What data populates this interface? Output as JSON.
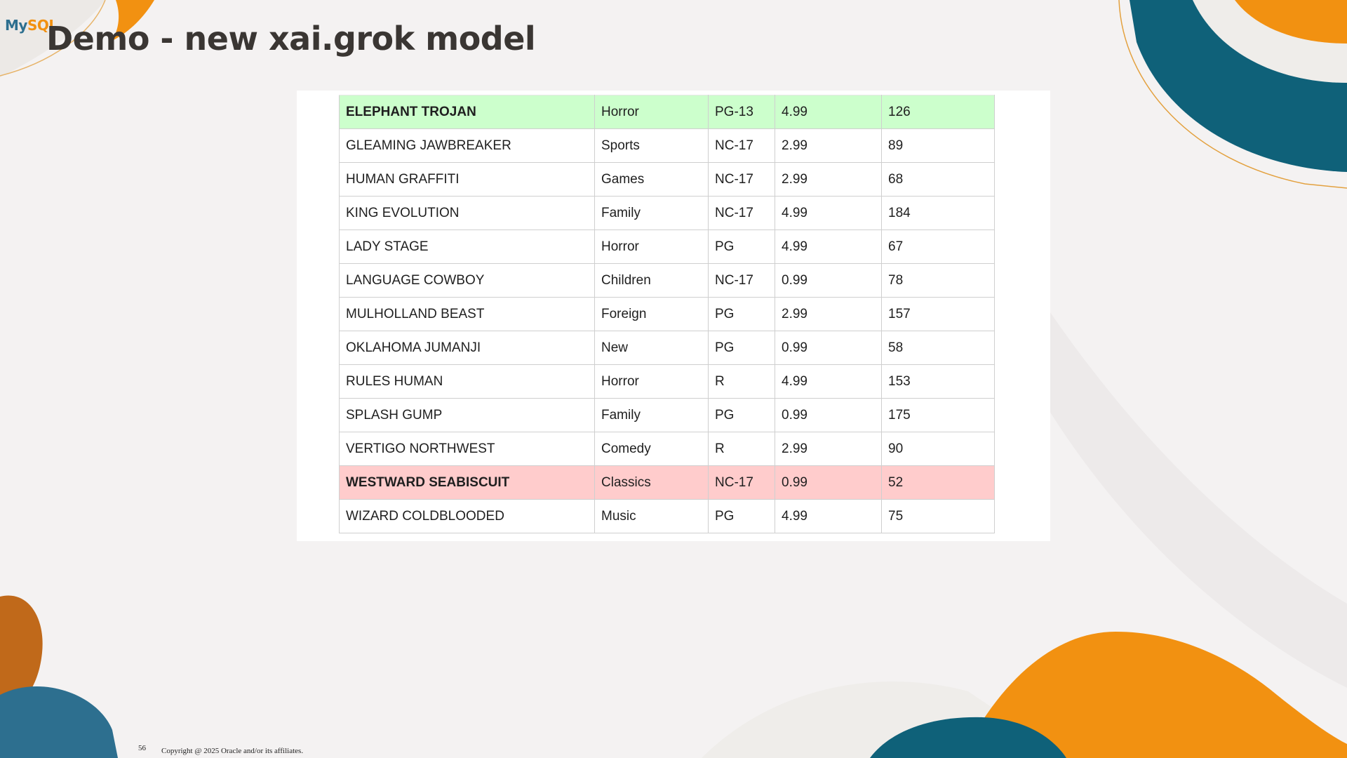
{
  "slide": {
    "title": "Demo - new xai.grok model",
    "logo_my": "My",
    "logo_sql": "SQL",
    "page_number": "56",
    "copyright": "Copyright @ 2025 Oracle and/or its affiliates."
  },
  "colors": {
    "orange": "#f29111",
    "teal": "#0f6179",
    "highlight_green": "#ccffcc",
    "highlight_red": "#ffcccc"
  },
  "table": {
    "rows": [
      {
        "title": "ELEPHANT TROJAN",
        "category": "Horror",
        "rating": "PG-13",
        "rate": "4.99",
        "length": "126",
        "highlight": "green"
      },
      {
        "title": "GLEAMING JAWBREAKER",
        "category": "Sports",
        "rating": "NC-17",
        "rate": "2.99",
        "length": "89",
        "highlight": ""
      },
      {
        "title": "HUMAN GRAFFITI",
        "category": "Games",
        "rating": "NC-17",
        "rate": "2.99",
        "length": "68",
        "highlight": ""
      },
      {
        "title": "KING EVOLUTION",
        "category": "Family",
        "rating": "NC-17",
        "rate": "4.99",
        "length": "184",
        "highlight": ""
      },
      {
        "title": "LADY STAGE",
        "category": "Horror",
        "rating": "PG",
        "rate": "4.99",
        "length": "67",
        "highlight": ""
      },
      {
        "title": "LANGUAGE COWBOY",
        "category": "Children",
        "rating": "NC-17",
        "rate": "0.99",
        "length": "78",
        "highlight": ""
      },
      {
        "title": "MULHOLLAND BEAST",
        "category": "Foreign",
        "rating": "PG",
        "rate": "2.99",
        "length": "157",
        "highlight": ""
      },
      {
        "title": "OKLAHOMA JUMANJI",
        "category": "New",
        "rating": "PG",
        "rate": "0.99",
        "length": "58",
        "highlight": ""
      },
      {
        "title": "RULES HUMAN",
        "category": "Horror",
        "rating": "R",
        "rate": "4.99",
        "length": "153",
        "highlight": ""
      },
      {
        "title": "SPLASH GUMP",
        "category": "Family",
        "rating": "PG",
        "rate": "0.99",
        "length": "175",
        "highlight": ""
      },
      {
        "title": "VERTIGO NORTHWEST",
        "category": "Comedy",
        "rating": "R",
        "rate": "2.99",
        "length": "90",
        "highlight": ""
      },
      {
        "title": "WESTWARD SEABISCUIT",
        "category": "Classics",
        "rating": "NC-17",
        "rate": "0.99",
        "length": "52",
        "highlight": "red"
      },
      {
        "title": "WIZARD COLDBLOODED",
        "category": "Music",
        "rating": "PG",
        "rate": "4.99",
        "length": "75",
        "highlight": ""
      }
    ]
  }
}
